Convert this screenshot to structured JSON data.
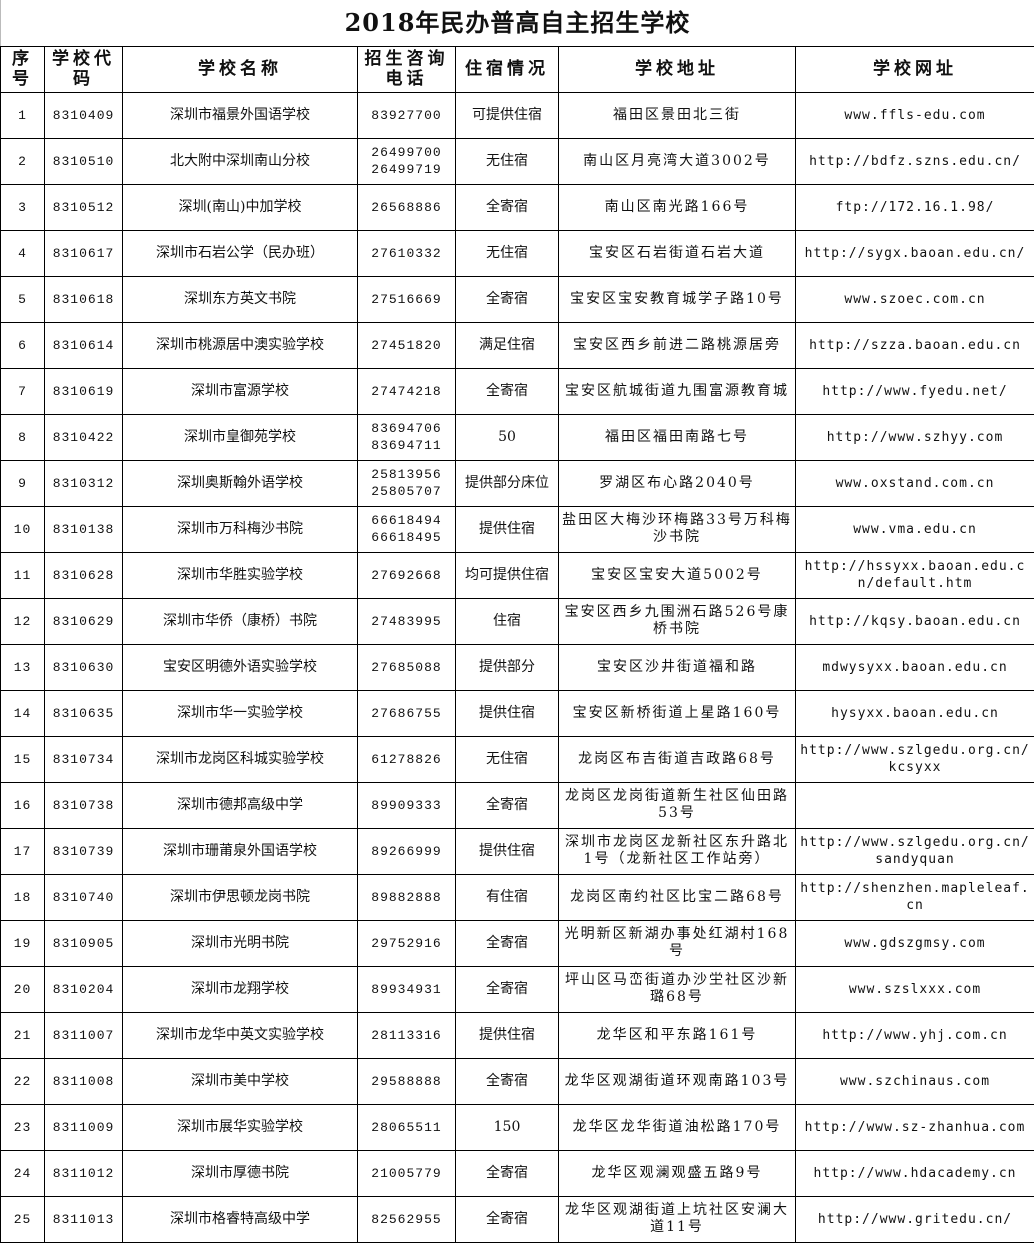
{
  "title": "2018年民办普高自主招生学校",
  "headers": {
    "index": "序号",
    "code": "学校代码",
    "name": "学校名称",
    "phone": "招生咨询电话",
    "boarding": "住宿情况",
    "address": "学校地址",
    "website": "学校网址"
  },
  "rows": [
    {
      "index": "1",
      "code": "8310409",
      "name": "深圳市福景外国语学校",
      "phone": "83927700",
      "boarding": "可提供住宿",
      "address": "福田区景田北三街",
      "website": "www.ffls-edu.com"
    },
    {
      "index": "2",
      "code": "8310510",
      "name": "北大附中深圳南山分校",
      "phone": "26499700\n26499719",
      "boarding": "无住宿",
      "address": "南山区月亮湾大道3002号",
      "website": "http://bdfz.szns.edu.cn/"
    },
    {
      "index": "3",
      "code": "8310512",
      "name": "深圳(南山)中加学校",
      "phone": "26568886",
      "boarding": "全寄宿",
      "address": "南山区南光路166号",
      "website": "ftp://172.16.1.98/"
    },
    {
      "index": "4",
      "code": "8310617",
      "name": "深圳市石岩公学（民办班）",
      "phone": "27610332",
      "boarding": "无住宿",
      "address": "宝安区石岩街道石岩大道",
      "website": "http://sygx.baoan.edu.cn/"
    },
    {
      "index": "5",
      "code": "8310618",
      "name": "深圳东方英文书院",
      "phone": "27516669",
      "boarding": "全寄宿",
      "address": "宝安区宝安教育城学子路10号",
      "website": "www.szoec.com.cn"
    },
    {
      "index": "6",
      "code": "8310614",
      "name": "深圳市桃源居中澳实验学校",
      "phone": "27451820",
      "boarding": "满足住宿",
      "address": "宝安区西乡前进二路桃源居旁",
      "website": "http://szza.baoan.edu.cn"
    },
    {
      "index": "7",
      "code": "8310619",
      "name": "深圳市富源学校",
      "phone": "27474218",
      "boarding": "全寄宿",
      "address": "宝安区航城街道九围富源教育城",
      "website": "http://www.fyedu.net/"
    },
    {
      "index": "8",
      "code": "8310422",
      "name": "深圳市皇御苑学校",
      "phone": "83694706\n83694711",
      "boarding": "50",
      "address": "福田区福田南路七号",
      "website": "http://www.szhyy.com"
    },
    {
      "index": "9",
      "code": "8310312",
      "name": "深圳奥斯翰外语学校",
      "phone": "25813956\n25805707",
      "boarding": "提供部分床位",
      "address": "罗湖区布心路2040号",
      "website": "www.oxstand.com.cn"
    },
    {
      "index": "10",
      "code": "8310138",
      "name": "深圳市万科梅沙书院",
      "phone": "66618494\n66618495",
      "boarding": "提供住宿",
      "address": "盐田区大梅沙环梅路33号万科梅沙书院",
      "website": "www.vma.edu.cn"
    },
    {
      "index": "11",
      "code": "8310628",
      "name": "深圳市华胜实验学校",
      "phone": "27692668",
      "boarding": "均可提供住宿",
      "address": "宝安区宝安大道5002号",
      "website": "http://hssyxx.baoan.edu.cn/default.htm"
    },
    {
      "index": "12",
      "code": "8310629",
      "name": "深圳市华侨（康桥）书院",
      "phone": "27483995",
      "boarding": "住宿",
      "address": "宝安区西乡九围洲石路526号康桥书院",
      "website": "http://kqsy.baoan.edu.cn"
    },
    {
      "index": "13",
      "code": "8310630",
      "name": "宝安区明德外语实验学校",
      "phone": "27685088",
      "boarding": "提供部分",
      "address": "宝安区沙井街道福和路",
      "website": "mdwysyxx.baoan.edu.cn"
    },
    {
      "index": "14",
      "code": "8310635",
      "name": "深圳市华一实验学校",
      "phone": "27686755",
      "boarding": "提供住宿",
      "address": "宝安区新桥街道上星路160号",
      "website": "hysyxx.baoan.edu.cn"
    },
    {
      "index": "15",
      "code": "8310734",
      "name": "深圳市龙岗区科城实验学校",
      "phone": "61278826",
      "boarding": "无住宿",
      "address": "龙岗区布吉街道吉政路68号",
      "website": "http://www.szlgedu.org.cn/kcsyxx"
    },
    {
      "index": "16",
      "code": "8310738",
      "name": "深圳市德邦高级中学",
      "phone": "89909333",
      "boarding": "全寄宿",
      "address": "龙岗区龙岗街道新生社区仙田路53号",
      "website": ""
    },
    {
      "index": "17",
      "code": "8310739",
      "name": "深圳市珊莆泉外国语学校",
      "phone": "89266999",
      "boarding": "提供住宿",
      "address": "深圳市龙岗区龙新社区东升路北1号（龙新社区工作站旁）",
      "website": "http://www.szlgedu.org.cn/sandyquan"
    },
    {
      "index": "18",
      "code": "8310740",
      "name": "深圳市伊思顿龙岗书院",
      "phone": "89882888",
      "boarding": "有住宿",
      "address": "龙岗区南约社区比宝二路68号",
      "website": "http://shenzhen.mapleleaf.cn"
    },
    {
      "index": "19",
      "code": "8310905",
      "name": "深圳市光明书院",
      "phone": "29752916",
      "boarding": "全寄宿",
      "address": "光明新区新湖办事处红湖村168号",
      "website": "www.gdszgmsy.com"
    },
    {
      "index": "20",
      "code": "8310204",
      "name": "深圳市龙翔学校",
      "phone": "89934931",
      "boarding": "全寄宿",
      "address": "坪山区马峦街道办沙坣社区沙新璐68号",
      "website": "www.szslxxx.com"
    },
    {
      "index": "21",
      "code": "8311007",
      "name": "深圳市龙华中英文实验学校",
      "phone": "28113316",
      "boarding": "提供住宿",
      "address": "龙华区和平东路161号",
      "website": "http://www.yhj.com.cn"
    },
    {
      "index": "22",
      "code": "8311008",
      "name": "深圳市美中学校",
      "phone": "29588888",
      "boarding": "全寄宿",
      "address": "龙华区观湖街道环观南路103号",
      "website": "www.szchinaus.com"
    },
    {
      "index": "23",
      "code": "8311009",
      "name": "深圳市展华实验学校",
      "phone": "28065511",
      "boarding": "150",
      "address": "龙华区龙华街道油松路170号",
      "website": "http://www.sz-zhanhua.com"
    },
    {
      "index": "24",
      "code": "8311012",
      "name": "深圳市厚德书院",
      "phone": "21005779",
      "boarding": "全寄宿",
      "address": "龙华区观澜观盛五路9号",
      "website": "http://www.hdacademy.cn"
    },
    {
      "index": "25",
      "code": "8311013",
      "name": "深圳市格睿特高级中学",
      "phone": "82562955",
      "boarding": "全寄宿",
      "address": "龙华区观湖街道上坑社区安澜大道11号",
      "website": "http://www.gritedu.cn/"
    }
  ]
}
